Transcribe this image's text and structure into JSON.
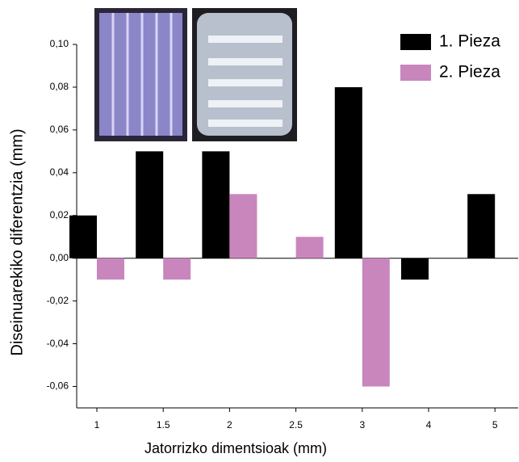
{
  "chart_data": {
    "type": "bar",
    "x_label": "Jatorrizko dimentsioak (mm)",
    "y_label": "Diseinuarekiko diferentzia (mm)",
    "categories": [
      "1",
      "1.5",
      "2",
      "2.5",
      "3",
      "4",
      "5"
    ],
    "series": [
      {
        "name": "1. Pieza",
        "color": "#000000",
        "values": [
          0.02,
          0.05,
          0.05,
          null,
          0.08,
          -0.01,
          0.03
        ]
      },
      {
        "name": "2. Pieza",
        "color": "#c986bd",
        "values": [
          -0.01,
          -0.01,
          0.03,
          0.01,
          -0.06,
          null,
          null
        ]
      }
    ],
    "ylim": [
      -0.07,
      0.1
    ],
    "yticks": [
      {
        "value": -0.06,
        "label": "-0,06"
      },
      {
        "value": -0.04,
        "label": "-0,04"
      },
      {
        "value": -0.02,
        "label": "-0,02"
      },
      {
        "value": 0,
        "label": "0,00"
      },
      {
        "value": 0.02,
        "label": "0,02"
      },
      {
        "value": 0.04,
        "label": "0,04"
      },
      {
        "value": 0.06,
        "label": "0,06"
      },
      {
        "value": 0.08,
        "label": "0,08"
      },
      {
        "value": 0.1,
        "label": "0,10"
      }
    ],
    "legend": "top-right"
  }
}
